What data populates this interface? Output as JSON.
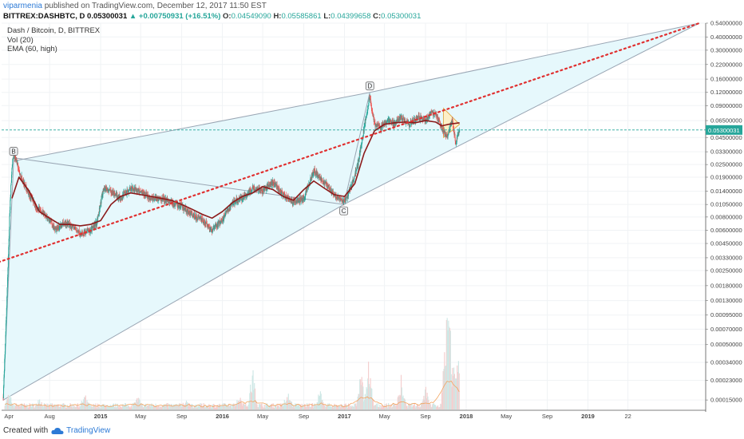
{
  "header": {
    "username": "viparmenia",
    "published_text": "published on TradingView.com, December 12, 2017 11:50 EST",
    "symbol_line": "BITTREX:DASHBTC, D",
    "price": "0.05300031",
    "change": "▲ +0.00750931 (+16.51%)",
    "o_label": "O:",
    "o_value": "0.04549090",
    "h_label": "H:",
    "h_value": "0.05585861",
    "l_label": "L:",
    "l_value": "0.04399658",
    "c_label": "C:",
    "c_value": "0.05300031"
  },
  "legend": {
    "title": "Dash / Bitcoin, D, BITTREX",
    "vol": "Vol (20)",
    "ema": "EMA (60, high)"
  },
  "footer": {
    "created_with": "Created with",
    "brand": "TradingView"
  },
  "chart_data": {
    "type": "line",
    "title": "Dash / Bitcoin, D, BITTREX",
    "y_scale": "log",
    "ylim": [
      0.00012,
      0.54
    ],
    "y_ticks": [
      "0.54000000",
      "0.40000000",
      "0.30000000",
      "0.22000000",
      "0.16000000",
      "0.12000000",
      "0.09000000",
      "0.06500000",
      "0.04500000",
      "0.03300000",
      "0.02500000",
      "0.01900000",
      "0.01400000",
      "0.01050000",
      "0.00800000",
      "0.00600000",
      "0.00450000",
      "0.00330000",
      "0.00250000",
      "0.00180000",
      "0.00130000",
      "0.00095000",
      "0.00070000",
      "0.00050000",
      "0.00034000",
      "0.00023000",
      "0.00015000"
    ],
    "x_ticks": [
      "Apr",
      "Aug",
      "2015",
      "May",
      "Sep",
      "2016",
      "May",
      "Sep",
      "2017",
      "May",
      "Sep",
      "2018",
      "May",
      "Sep",
      "2019",
      "22"
    ],
    "x_ticks_bold": [
      "2015",
      "2016",
      "2017",
      "2018",
      "2019"
    ],
    "current_price_label": "0.05300031",
    "pattern_labels": [
      "B",
      "C",
      "D"
    ],
    "price_series": {
      "name": "DASH/BTC",
      "x": [
        "2014-03-15",
        "2014-03-25",
        "2014-04-05",
        "2014-04-12",
        "2014-04-20",
        "2014-05-01",
        "2014-05-15",
        "2014-06-01",
        "2014-06-20",
        "2014-07-10",
        "2014-08-01",
        "2014-08-20",
        "2014-09-15",
        "2014-10-10",
        "2014-11-01",
        "2014-12-01",
        "2014-12-20",
        "2015-01-10",
        "2015-02-01",
        "2015-03-01",
        "2015-04-01",
        "2015-05-01",
        "2015-06-01",
        "2015-07-01",
        "2015-08-01",
        "2015-09-01",
        "2015-10-01",
        "2015-11-01",
        "2015-12-01",
        "2016-01-01",
        "2016-02-01",
        "2016-03-01",
        "2016-04-01",
        "2016-05-01",
        "2016-06-01",
        "2016-07-01",
        "2016-08-01",
        "2016-09-01",
        "2016-10-01",
        "2016-11-01",
        "2016-12-01",
        "2017-01-01",
        "2017-01-20",
        "2017-02-10",
        "2017-03-01",
        "2017-03-18",
        "2017-04-01",
        "2017-04-20",
        "2017-05-10",
        "2017-06-01",
        "2017-06-20",
        "2017-07-15",
        "2017-08-10",
        "2017-09-01",
        "2017-09-20",
        "2017-10-05",
        "2017-10-20",
        "2017-11-05",
        "2017-11-20",
        "2017-12-01",
        "2017-12-12"
      ],
      "y": [
        0.00016,
        0.0011,
        0.012,
        0.028,
        0.03,
        0.022,
        0.017,
        0.013,
        0.01,
        0.009,
        0.0075,
        0.006,
        0.007,
        0.0065,
        0.0055,
        0.006,
        0.007,
        0.015,
        0.014,
        0.012,
        0.015,
        0.014,
        0.012,
        0.012,
        0.011,
        0.01,
        0.0085,
        0.0075,
        0.006,
        0.0075,
        0.011,
        0.012,
        0.015,
        0.014,
        0.017,
        0.013,
        0.011,
        0.012,
        0.022,
        0.017,
        0.013,
        0.011,
        0.015,
        0.025,
        0.055,
        0.11,
        0.06,
        0.055,
        0.065,
        0.06,
        0.07,
        0.06,
        0.07,
        0.065,
        0.08,
        0.07,
        0.055,
        0.045,
        0.065,
        0.04,
        0.053
      ]
    },
    "ema_series": {
      "name": "EMA (60, high)",
      "x": [
        "2014-04-10",
        "2014-05-01",
        "2014-06-01",
        "2014-07-01",
        "2014-08-01",
        "2014-09-01",
        "2014-10-01",
        "2014-11-01",
        "2014-12-01",
        "2015-01-01",
        "2015-02-01",
        "2015-03-01",
        "2015-04-01",
        "2015-05-01",
        "2015-06-01",
        "2015-07-01",
        "2015-08-01",
        "2015-09-01",
        "2015-10-01",
        "2015-11-01",
        "2015-12-01",
        "2016-01-01",
        "2016-02-01",
        "2016-03-01",
        "2016-04-01",
        "2016-05-01",
        "2016-06-01",
        "2016-07-01",
        "2016-08-01",
        "2016-09-01",
        "2016-10-01",
        "2016-11-01",
        "2016-12-01",
        "2017-01-01",
        "2017-02-01",
        "2017-03-01",
        "2017-04-01",
        "2017-05-01",
        "2017-06-01",
        "2017-07-01",
        "2017-08-01",
        "2017-09-01",
        "2017-10-01",
        "2017-10-20",
        "2017-11-10",
        "2017-12-12"
      ],
      "y": [
        0.012,
        0.019,
        0.014,
        0.009,
        0.0078,
        0.0068,
        0.0068,
        0.0066,
        0.0068,
        0.0074,
        0.0105,
        0.0125,
        0.0135,
        0.013,
        0.0125,
        0.012,
        0.0115,
        0.0105,
        0.0095,
        0.0085,
        0.0078,
        0.009,
        0.011,
        0.0125,
        0.0135,
        0.0155,
        0.0145,
        0.0125,
        0.0115,
        0.0145,
        0.0175,
        0.015,
        0.013,
        0.0125,
        0.0165,
        0.032,
        0.052,
        0.06,
        0.062,
        0.063,
        0.062,
        0.065,
        0.063,
        0.058,
        0.06,
        0.062
      ]
    },
    "volume": {
      "name": "Vol (20)",
      "spikes": [
        {
          "x": "2014-04-01",
          "v": 0.12
        },
        {
          "x": "2014-07-01",
          "v": 0.05
        },
        {
          "x": "2014-11-15",
          "v": 0.08
        },
        {
          "x": "2015-04-20",
          "v": 0.09
        },
        {
          "x": "2015-09-15",
          "v": 0.04
        },
        {
          "x": "2016-02-20",
          "v": 0.1
        },
        {
          "x": "2016-04-01",
          "v": 0.35
        },
        {
          "x": "2016-07-15",
          "v": 0.12
        },
        {
          "x": "2016-10-20",
          "v": 0.14
        },
        {
          "x": "2017-02-20",
          "v": 0.3
        },
        {
          "x": "2017-03-15",
          "v": 0.45
        },
        {
          "x": "2017-06-20",
          "v": 0.25
        },
        {
          "x": "2017-09-01",
          "v": 0.2
        },
        {
          "x": "2017-11-01",
          "v": 1.0
        },
        {
          "x": "2017-11-15",
          "v": 0.7
        },
        {
          "x": "2017-12-05",
          "v": 0.55
        }
      ]
    },
    "annotations": {
      "trendline_dotted": {
        "x": [
          "2014-03-01",
          "2019-12-01"
        ],
        "y": [
          0.003,
          0.54
        ]
      },
      "wedge_upper": {
        "x": [
          "2014-04-15",
          "2017-03-18",
          "2019-12-01"
        ],
        "y": [
          0.027,
          0.12,
          0.54
        ]
      },
      "wedge_lower": {
        "x": [
          "2014-03-15",
          "2016-12-30",
          "2019-12-01"
        ],
        "y": [
          0.00015,
          0.0105,
          0.54
        ]
      },
      "bc_line": {
        "x": [
          "2014-04-15",
          "2016-12-30"
        ],
        "y": [
          0.029,
          0.0105
        ]
      },
      "cd_line": {
        "x": [
          "2016-12-30",
          "2017-03-18"
        ],
        "y": [
          0.0105,
          0.12
        ]
      },
      "current_price": 0.05300031
    }
  },
  "colors": {
    "candle_up": "#26a69a",
    "candle_down": "#ef5350",
    "ema": "#8b1a1a",
    "trendline": "#e03030",
    "wedge_fill": "#e6f8fc",
    "wedge_line": "#9aa6b4",
    "price_line": "#26a69a",
    "volume": "#b7c2c6"
  }
}
